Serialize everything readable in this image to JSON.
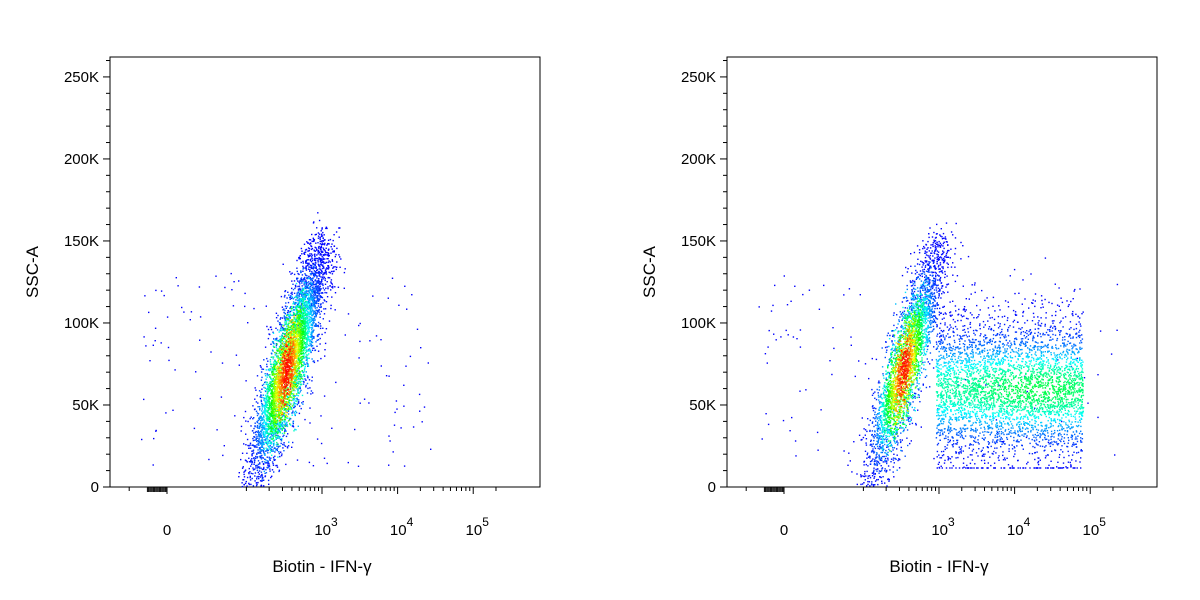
{
  "chart_data": [
    {
      "type": "scatter",
      "title": "",
      "xlabel": "Biotin - IFN-γ",
      "ylabel": "SSC-A",
      "x_scale": "biexponential",
      "x_tick_labels": [
        "0",
        "10^3",
        "10^4",
        "10^5"
      ],
      "y_tick_labels": [
        "0",
        "50K",
        "100K",
        "150K",
        "200K",
        "250K"
      ],
      "ylim": [
        0,
        262144
      ],
      "point_color_scale": [
        "#0000ff",
        "#00ffff",
        "#00ff00",
        "#ffff00",
        "#ff0000"
      ],
      "populations": [
        {
          "name": "",
          "shape": "diagonal elongated cloud",
          "x_range": [
            100,
            900
          ],
          "ssc_range": [
            10000,
            145000
          ],
          "density_peak": {
            "x": 400,
            "ssc": 62000
          },
          "event_share": 1.0
        }
      ]
    },
    {
      "type": "scatter",
      "title": "",
      "xlabel": "Biotin - IFN-γ",
      "ylabel": "SSC-A",
      "x_scale": "biexponential",
      "x_tick_labels": [
        "0",
        "10^3",
        "10^4",
        "10^5"
      ],
      "y_tick_labels": [
        "0",
        "50K",
        "100K",
        "150K",
        "200K",
        "250K"
      ],
      "ylim": [
        0,
        262144
      ],
      "point_color_scale": [
        "#0000ff",
        "#00ffff",
        "#00ff00",
        "#ffff00",
        "#ff0000"
      ],
      "populations": [
        {
          "name": "",
          "shape": "diagonal elongated cloud",
          "x_range": [
            100,
            900
          ],
          "ssc_range": [
            10000,
            145000
          ],
          "density_peak": {
            "x": 450,
            "ssc": 58000
          },
          "event_share": 0.55
        },
        {
          "name": "",
          "shape": "horizontal broad cloud",
          "x_range": [
            900,
            80000
          ],
          "ssc_range": [
            15000,
            140000
          ],
          "density_peak": {
            "x": 20000,
            "ssc": 60000
          },
          "event_share": 0.45
        }
      ]
    }
  ]
}
